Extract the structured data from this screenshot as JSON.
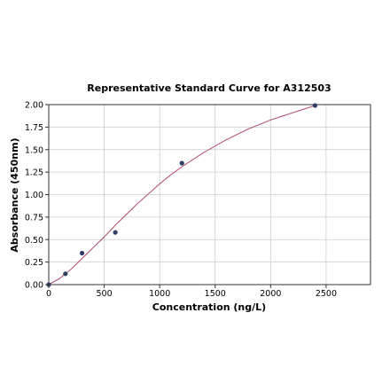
{
  "chart_data": {
    "type": "scatter",
    "title": "Representative Standard Curve for A312503",
    "xlabel": "Concentration (ng/L)",
    "ylabel": "Absorbance (450nm)",
    "xlim": [
      0,
      2900
    ],
    "ylim": [
      0,
      2.0
    ],
    "x_ticks": [
      0,
      500,
      1000,
      1500,
      2000,
      2500
    ],
    "y_ticks": [
      0.0,
      0.25,
      0.5,
      0.75,
      1.0,
      1.25,
      1.5,
      1.75,
      2.0
    ],
    "x_tick_labels": [
      "0",
      "500",
      "1000",
      "1500",
      "2000",
      "2500"
    ],
    "y_tick_labels": [
      "0.00",
      "0.25",
      "0.50",
      "0.75",
      "1.00",
      "1.25",
      "1.50",
      "1.75",
      "2.00"
    ],
    "grid": true,
    "series": [
      {
        "points": [
          {
            "x": 0,
            "y": 0.0
          },
          {
            "x": 150,
            "y": 0.12
          },
          {
            "x": 300,
            "y": 0.35
          },
          {
            "x": 600,
            "y": 0.58
          },
          {
            "x": 1200,
            "y": 1.35
          },
          {
            "x": 2400,
            "y": 1.99
          }
        ]
      }
    ],
    "fit_curve": {
      "x": [
        0,
        100,
        200,
        300,
        400,
        500,
        600,
        700,
        800,
        900,
        1000,
        1100,
        1200,
        1300,
        1400,
        1500,
        1600,
        1700,
        1800,
        1900,
        2000,
        2100,
        2200,
        2300,
        2400
      ],
      "y": [
        0.0,
        0.07,
        0.17,
        0.29,
        0.41,
        0.53,
        0.66,
        0.78,
        0.9,
        1.01,
        1.12,
        1.22,
        1.31,
        1.39,
        1.47,
        1.54,
        1.61,
        1.67,
        1.73,
        1.78,
        1.83,
        1.87,
        1.91,
        1.95,
        1.99
      ]
    },
    "colors": {
      "point": "#2f3f66",
      "curve": "#b5586f",
      "grid": "#cccccc",
      "axis": "#333333"
    }
  }
}
